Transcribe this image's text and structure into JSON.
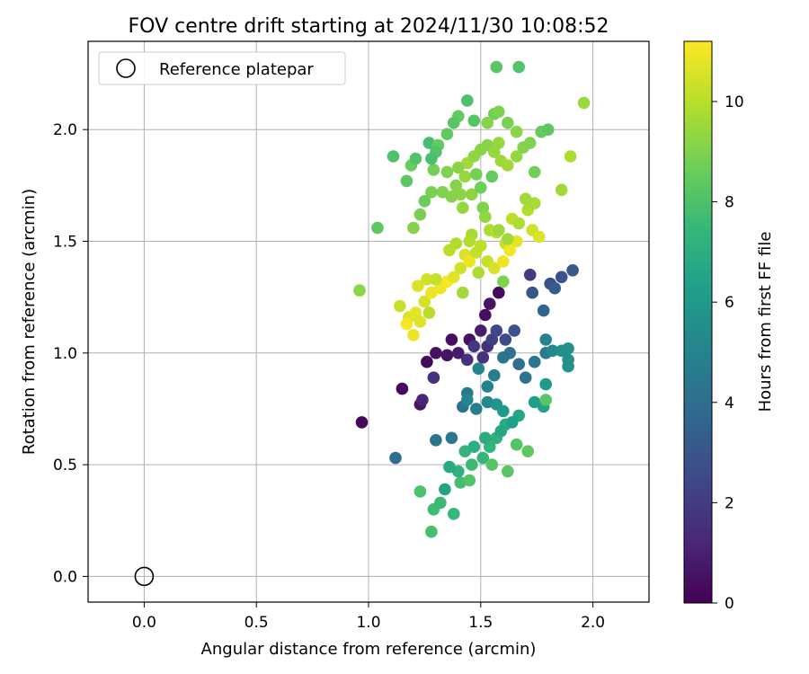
{
  "chart_data": {
    "type": "scatter",
    "title": "FOV centre drift starting at 2024/11/30 10:08:52",
    "xlabel": "Angular distance from reference (arcmin)",
    "ylabel": "Rotation from reference (arcmin)",
    "xlim": [
      -0.25,
      2.25
    ],
    "ylim": [
      -0.115,
      2.395
    ],
    "xticks": [
      0.0,
      0.5,
      1.0,
      1.5,
      2.0
    ],
    "xtick_labels": [
      "0.0",
      "0.5",
      "1.0",
      "1.5",
      "2.0"
    ],
    "yticks": [
      0.0,
      0.5,
      1.0,
      1.5,
      2.0
    ],
    "ytick_labels": [
      "0.0",
      "0.5",
      "1.0",
      "1.5",
      "2.0"
    ],
    "grid": true,
    "legend": {
      "placement": "top-left",
      "entries": [
        "Reference platepar"
      ]
    },
    "reference_point": {
      "x": 0.0,
      "y": 0.0
    },
    "colorbar": {
      "label": "Hours from first FF file",
      "range": [
        0,
        11.2
      ],
      "ticks": [
        0,
        2,
        4,
        6,
        8,
        10
      ],
      "tick_labels": [
        "0",
        "2",
        "4",
        "6",
        "8",
        "10"
      ],
      "colormap": "viridis",
      "colormap_stops": [
        "#440154",
        "#482878",
        "#3e4989",
        "#31688e",
        "#26828e",
        "#1f9e89",
        "#35b779",
        "#6ece58",
        "#b5de2b",
        "#fde725"
      ]
    },
    "points": [
      [
        0.97,
        0.69,
        0.2
      ],
      [
        1.15,
        0.84,
        0.3
      ],
      [
        1.23,
        0.77,
        0.6
      ],
      [
        1.26,
        0.96,
        0.3
      ],
      [
        1.3,
        1.0,
        0.5
      ],
      [
        1.35,
        0.99,
        0.6
      ],
      [
        1.37,
        1.06,
        0.4
      ],
      [
        1.4,
        1.0,
        0.8
      ],
      [
        1.45,
        1.06,
        0.5
      ],
      [
        1.5,
        1.1,
        0.9
      ],
      [
        1.52,
        1.17,
        0.4
      ],
      [
        1.54,
        1.22,
        0.6
      ],
      [
        1.58,
        1.27,
        0.3
      ],
      [
        1.53,
        1.03,
        1.5
      ],
      [
        1.47,
        1.03,
        1.8
      ],
      [
        1.44,
        0.97,
        1.6
      ],
      [
        1.51,
        0.98,
        1.7
      ],
      [
        1.29,
        0.89,
        1.6
      ],
      [
        1.24,
        0.79,
        1.2
      ],
      [
        1.55,
        1.06,
        2.2
      ],
      [
        1.57,
        1.1,
        2.4
      ],
      [
        1.61,
        1.06,
        2.6
      ],
      [
        1.65,
        1.1,
        2.9
      ],
      [
        1.72,
        1.35,
        1.9
      ],
      [
        1.81,
        1.31,
        2.8
      ],
      [
        1.86,
        1.34,
        2.9
      ],
      [
        1.91,
        1.37,
        3.1
      ],
      [
        1.73,
        1.27,
        3.0
      ],
      [
        1.78,
        1.19,
        3.6
      ],
      [
        1.83,
        1.29,
        3.2
      ],
      [
        1.12,
        0.53,
        4.0
      ],
      [
        1.3,
        0.61,
        4.3
      ],
      [
        1.37,
        0.62,
        4.5
      ],
      [
        1.42,
        0.76,
        4.2
      ],
      [
        1.44,
        0.82,
        4.6
      ],
      [
        1.48,
        0.75,
        4.8
      ],
      [
        1.53,
        0.85,
        4.9
      ],
      [
        1.56,
        0.9,
        4.7
      ],
      [
        1.6,
        0.98,
        4.4
      ],
      [
        1.63,
        1.0,
        4.2
      ],
      [
        1.67,
        0.95,
        4.1
      ],
      [
        1.7,
        0.89,
        4.3
      ],
      [
        1.74,
        0.96,
        4.5
      ],
      [
        1.79,
        1.0,
        4.6
      ],
      [
        1.79,
        1.06,
        5.0
      ],
      [
        1.82,
        1.01,
        5.3
      ],
      [
        1.86,
        1.01,
        5.5
      ],
      [
        1.89,
        1.02,
        5.6
      ],
      [
        1.89,
        0.94,
        5.7
      ],
      [
        1.89,
        0.97,
        5.6
      ],
      [
        1.79,
        0.86,
        6.1
      ],
      [
        1.78,
        0.76,
        6.4
      ],
      [
        1.74,
        0.78,
        6.2
      ],
      [
        1.67,
        0.72,
        6.6
      ],
      [
        1.61,
        0.68,
        6.9
      ],
      [
        1.57,
        0.62,
        7.1
      ],
      [
        1.54,
        0.58,
        7.3
      ],
      [
        1.51,
        0.53,
        7.4
      ],
      [
        1.46,
        0.5,
        7.6
      ],
      [
        1.43,
        0.56,
        7.3
      ],
      [
        1.4,
        0.47,
        7.1
      ],
      [
        1.36,
        0.49,
        6.8
      ],
      [
        1.34,
        0.39,
        6.5
      ],
      [
        1.38,
        0.28,
        7.5
      ],
      [
        1.29,
        0.3,
        7.7
      ],
      [
        1.28,
        0.2,
        7.9
      ],
      [
        1.23,
        0.38,
        8.0
      ],
      [
        1.32,
        0.33,
        7.6
      ],
      [
        1.41,
        0.42,
        7.8
      ],
      [
        1.45,
        0.43,
        8.1
      ],
      [
        1.55,
        0.5,
        8.2
      ],
      [
        1.62,
        0.47,
        8.3
      ],
      [
        1.66,
        0.59,
        8.1
      ],
      [
        1.71,
        0.56,
        8.4
      ],
      [
        1.79,
        0.79,
        8.2
      ],
      [
        1.49,
        0.93,
        5.0
      ],
      [
        1.53,
        0.78,
        5.3
      ],
      [
        1.57,
        0.77,
        5.8
      ],
      [
        1.6,
        0.74,
        6.0
      ],
      [
        1.64,
        0.69,
        6.3
      ],
      [
        1.59,
        0.65,
        6.6
      ],
      [
        1.52,
        0.62,
        6.9
      ],
      [
        1.47,
        0.58,
        7.0
      ],
      [
        1.44,
        0.79,
        5.1
      ],
      [
        1.04,
        1.56,
        8.4
      ],
      [
        1.11,
        1.88,
        8.0
      ],
      [
        1.17,
        1.77,
        8.3
      ],
      [
        1.19,
        1.84,
        8.6
      ],
      [
        1.21,
        1.87,
        8.1
      ],
      [
        1.27,
        1.94,
        7.8
      ],
      [
        1.29,
        1.82,
        8.8
      ],
      [
        1.31,
        1.93,
        8.5
      ],
      [
        1.35,
        1.81,
        9.0
      ],
      [
        1.39,
        1.75,
        9.1
      ],
      [
        1.41,
        1.71,
        9.2
      ],
      [
        1.43,
        1.79,
        9.4
      ],
      [
        1.44,
        1.85,
        9.6
      ],
      [
        1.47,
        1.88,
        9.3
      ],
      [
        1.5,
        1.91,
        9.2
      ],
      [
        1.53,
        1.93,
        9.1
      ],
      [
        1.56,
        1.9,
        9.4
      ],
      [
        1.59,
        1.86,
        9.5
      ],
      [
        1.62,
        1.84,
        9.6
      ],
      [
        1.66,
        1.88,
        9.4
      ],
      [
        1.69,
        1.92,
        9.1
      ],
      [
        1.72,
        1.94,
        9.0
      ],
      [
        1.74,
        1.81,
        8.8
      ],
      [
        1.77,
        1.99,
        8.5
      ],
      [
        1.8,
        2.0,
        8.3
      ],
      [
        1.86,
        1.73,
        9.6
      ],
      [
        1.9,
        1.88,
        9.8
      ],
      [
        1.96,
        2.12,
        9.5
      ],
      [
        1.67,
        2.28,
        8.1
      ],
      [
        1.57,
        2.28,
        8.3
      ],
      [
        1.44,
        2.13,
        8.0
      ],
      [
        1.4,
        2.06,
        8.5
      ],
      [
        1.47,
        2.04,
        8.2
      ],
      [
        1.56,
        2.07,
        8.7
      ],
      [
        1.58,
        2.08,
        9.0
      ],
      [
        1.62,
        2.03,
        8.9
      ],
      [
        1.66,
        1.99,
        9.2
      ],
      [
        1.53,
        2.03,
        9.1
      ],
      [
        1.38,
        2.03,
        8.2
      ],
      [
        1.35,
        1.98,
        8.4
      ],
      [
        1.3,
        1.9,
        8.1
      ],
      [
        1.25,
        1.68,
        8.6
      ],
      [
        1.28,
        1.72,
        8.9
      ],
      [
        1.33,
        1.72,
        9.0
      ],
      [
        1.37,
        1.7,
        9.1
      ],
      [
        1.42,
        1.65,
        9.4
      ],
      [
        1.46,
        1.71,
        9.2
      ],
      [
        1.51,
        1.65,
        9.0
      ],
      [
        1.54,
        1.55,
        9.8
      ],
      [
        1.57,
        1.54,
        10.0
      ],
      [
        1.61,
        1.49,
        10.2
      ],
      [
        1.64,
        1.6,
        10.1
      ],
      [
        1.67,
        1.58,
        9.8
      ],
      [
        1.73,
        1.55,
        10.4
      ],
      [
        1.76,
        1.52,
        10.6
      ],
      [
        1.71,
        1.64,
        9.9
      ],
      [
        1.74,
        1.67,
        9.7
      ],
      [
        1.7,
        1.69,
        9.6
      ],
      [
        1.23,
        1.62,
        8.9
      ],
      [
        1.2,
        1.56,
        9.1
      ],
      [
        0.96,
        1.28,
        9.2
      ],
      [
        1.14,
        1.21,
        10.3
      ],
      [
        1.18,
        1.16,
        10.6
      ],
      [
        1.21,
        1.18,
        10.8
      ],
      [
        1.25,
        1.23,
        10.5
      ],
      [
        1.28,
        1.27,
        10.9
      ],
      [
        1.32,
        1.29,
        11.0
      ],
      [
        1.35,
        1.32,
        11.1
      ],
      [
        1.38,
        1.34,
        10.7
      ],
      [
        1.41,
        1.38,
        10.4
      ],
      [
        1.43,
        1.44,
        10.6
      ],
      [
        1.45,
        1.41,
        10.9
      ],
      [
        1.48,
        1.45,
        10.2
      ],
      [
        1.5,
        1.48,
        10.1
      ],
      [
        1.53,
        1.41,
        10.3
      ],
      [
        1.56,
        1.38,
        10.5
      ],
      [
        1.6,
        1.41,
        10.9
      ],
      [
        1.63,
        1.46,
        11.0
      ],
      [
        1.66,
        1.5,
        10.8
      ],
      [
        1.2,
        1.08,
        10.9
      ],
      [
        1.22,
        1.3,
        10.6
      ],
      [
        1.26,
        1.33,
        10.4
      ],
      [
        1.3,
        1.33,
        10.2
      ],
      [
        1.36,
        1.46,
        10.0
      ],
      [
        1.39,
        1.49,
        9.9
      ],
      [
        1.46,
        1.53,
        9.7
      ],
      [
        1.49,
        1.36,
        9.8
      ],
      [
        1.42,
        1.27,
        9.6
      ],
      [
        1.27,
        1.18,
        10.0
      ],
      [
        1.23,
        1.14,
        10.7
      ],
      [
        1.17,
        1.13,
        11.1
      ],
      [
        1.5,
        1.74,
        8.7
      ],
      [
        1.55,
        1.79,
        8.5
      ],
      [
        1.48,
        1.8,
        8.8
      ],
      [
        1.4,
        1.83,
        9.2
      ],
      [
        1.52,
        1.61,
        9.3
      ],
      [
        1.58,
        1.55,
        9.5
      ],
      [
        1.62,
        1.51,
        9.6
      ],
      [
        1.45,
        1.5,
        9.9
      ],
      [
        1.6,
        1.32,
        9.0
      ],
      [
        1.28,
        1.87,
        7.9
      ],
      [
        1.58,
        1.94,
        9.4
      ]
    ]
  }
}
